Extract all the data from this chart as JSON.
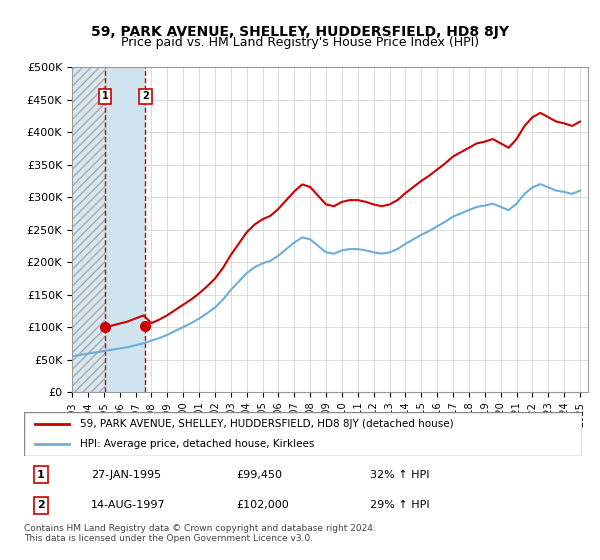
{
  "title": "59, PARK AVENUE, SHELLEY, HUDDERSFIELD, HD8 8JY",
  "subtitle": "Price paid vs. HM Land Registry's House Price Index (HPI)",
  "ylabel_ticks": [
    "£0",
    "£50K",
    "£100K",
    "£150K",
    "£200K",
    "£250K",
    "£300K",
    "£350K",
    "£400K",
    "£450K",
    "£500K"
  ],
  "ylim": [
    0,
    500000
  ],
  "xlim_start": 1993.0,
  "xlim_end": 2025.5,
  "purchase1_date": 1995.07,
  "purchase1_price": 99450,
  "purchase1_label": "1",
  "purchase2_date": 1997.62,
  "purchase2_price": 102000,
  "purchase2_label": "2",
  "legend_line1": "59, PARK AVENUE, SHELLEY, HUDDERSFIELD, HD8 8JY (detached house)",
  "legend_line2": "HPI: Average price, detached house, Kirklees",
  "table_row1": [
    "1",
    "27-JAN-1995",
    "£99,450",
    "32% ↑ HPI"
  ],
  "table_row2": [
    "2",
    "14-AUG-1997",
    "£102,000",
    "29% ↑ HPI"
  ],
  "footnote": "Contains HM Land Registry data © Crown copyright and database right 2024.\nThis data is licensed under the Open Government Licence v3.0.",
  "hpi_color": "#6baed6",
  "price_color": "#cc0000",
  "purchase_marker_color": "#cc0000",
  "shaded_color": "#d0e4f0",
  "hatch_color": "#b0b0b0",
  "grid_color": "#cccccc",
  "background_color": "#ffffff"
}
